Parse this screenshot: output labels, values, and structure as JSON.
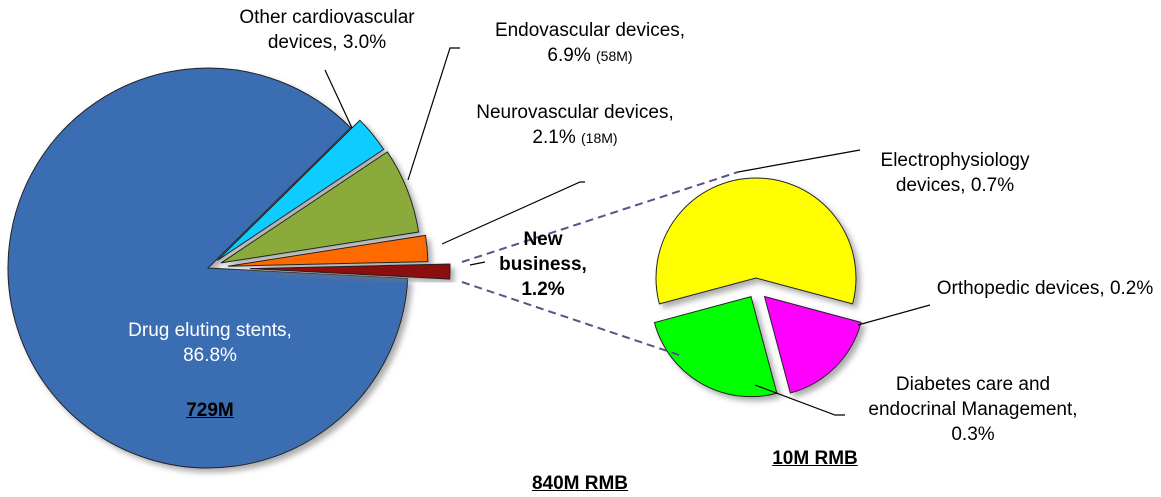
{
  "chart_data": {
    "type": "pie-of-pie",
    "categories": [
      "Drug eluting stents,",
      "Other cardiovascular devices,",
      "Endovascular devices,",
      "Neurovascular devices,",
      "New business,"
    ],
    "values": [
      86.8,
      3.0,
      6.9,
      2.1,
      1.2
    ],
    "value_labels": [
      "86.8%",
      "3.0%",
      "6.9%",
      "2.1%",
      "1.2%"
    ],
    "colors": [
      "#3b6db3",
      "#11ccff",
      "#8aab3a",
      "#ff6a00",
      "#8b0a0a"
    ],
    "secondary": {
      "categories": [
        "Electrophysiology devices,",
        "Orthopedic devices,",
        "Diabetes care and endocrinal Management,"
      ],
      "values": [
        0.7,
        0.2,
        0.3
      ],
      "value_labels": [
        "0.7%",
        "0.2%",
        "0.3%"
      ],
      "colors": [
        "#ffff00",
        "#ff00ff",
        "#00ff00"
      ]
    },
    "annotations": [
      "729M",
      "(58M)",
      "(18M)",
      "10M RMB",
      "840M RMB"
    ]
  }
}
